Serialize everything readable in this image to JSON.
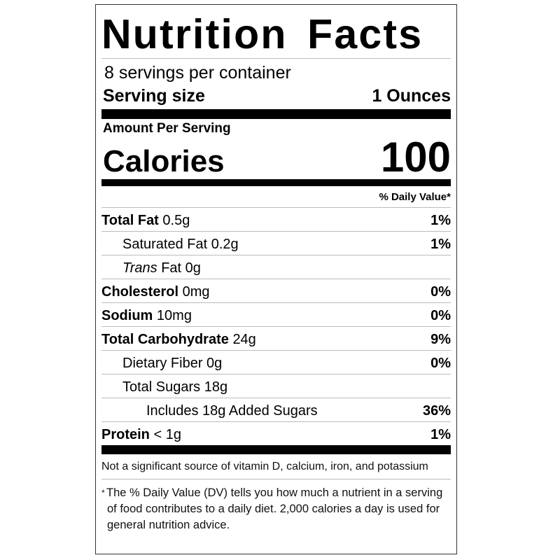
{
  "title": "Nutrition Facts",
  "servings_per_container": "8 servings per container",
  "serving_size": {
    "label": "Serving size",
    "value": "1 Ounces"
  },
  "amount_per_serving": "Amount Per Serving",
  "calories": {
    "label": "Calories",
    "value": "100"
  },
  "daily_value_header": "% Daily Value*",
  "nutrients": [
    {
      "name": "Total Fat",
      "amount": "0.5g",
      "dv": "1%"
    },
    {
      "name": "Saturated Fat",
      "amount": "0.2g",
      "dv": "1%"
    },
    {
      "name": "Trans",
      "name_suffix": "Fat",
      "amount": "0g",
      "dv": ""
    },
    {
      "name": "Cholesterol",
      "amount": "0mg",
      "dv": "0%"
    },
    {
      "name": "Sodium",
      "amount": "10mg",
      "dv": "0%"
    },
    {
      "name": "Total Carbohydrate",
      "amount": "24g",
      "dv": "9%"
    },
    {
      "name": "Dietary Fiber",
      "amount": "0g",
      "dv": "0%"
    },
    {
      "name": "Total Sugars",
      "amount": "18g",
      "dv": ""
    },
    {
      "name": "Includes 18g Added Sugars",
      "amount": "",
      "dv": "36%"
    },
    {
      "name": "Protein",
      "amount": "< 1g",
      "dv": "1%"
    }
  ],
  "not_significant_note": "Not a significant source of vitamin D, calcium, iron, and potassium",
  "footnote": {
    "asterisk": "*",
    "text": "The % Daily Value (DV) tells you how much a nutrient in a serving of food contributes to a daily diet. 2,000 calories a day is used for general nutrition advice."
  }
}
